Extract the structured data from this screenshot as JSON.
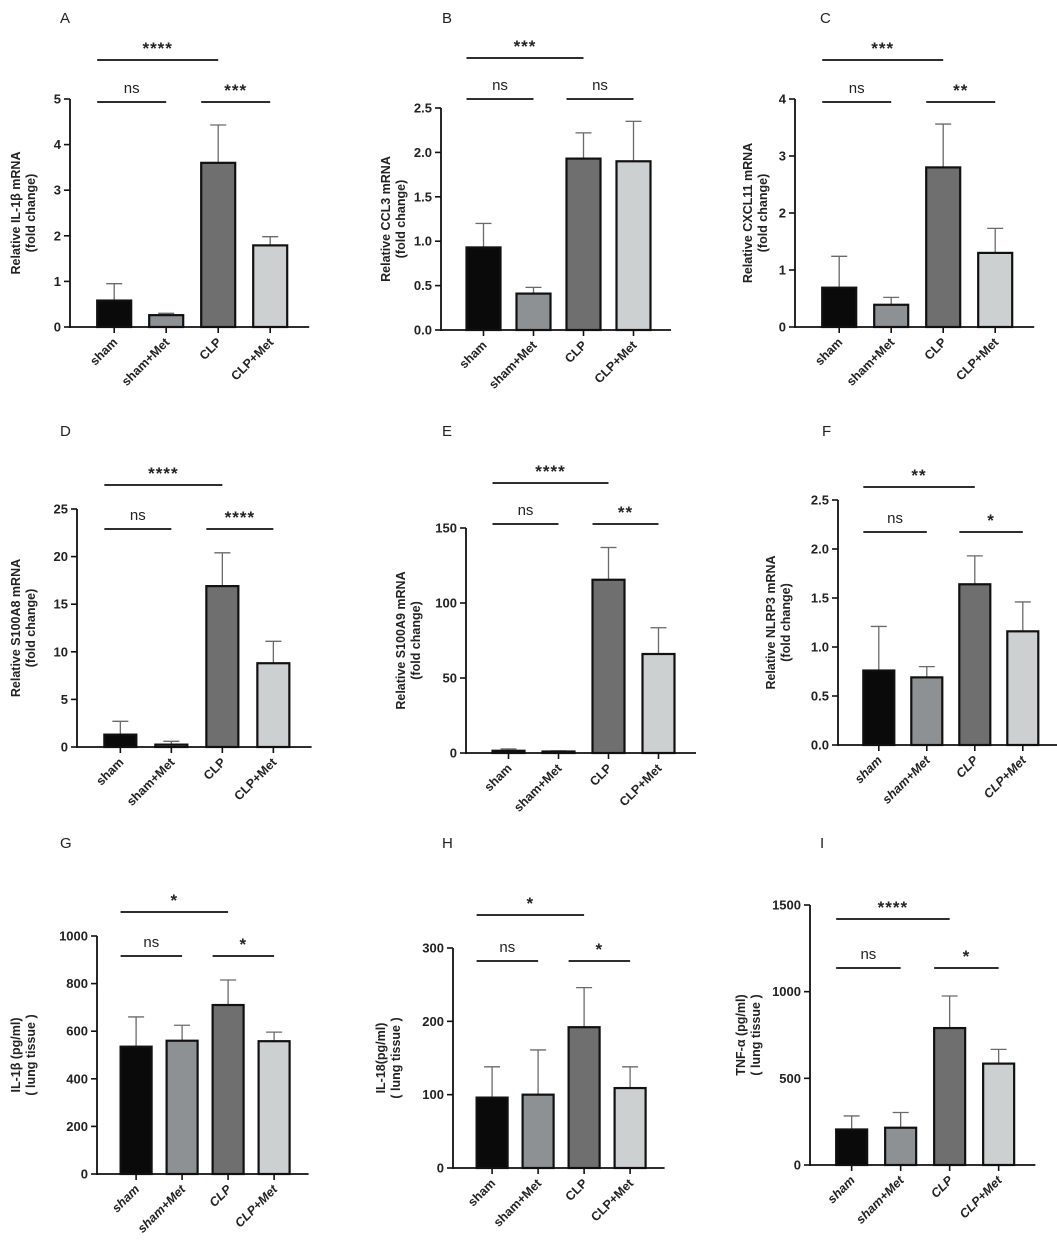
{
  "chart_data": [
    {
      "panel": "A",
      "type": "bar",
      "categories": [
        "sham",
        "sham+Met",
        "CLP",
        "CLP+Met"
      ],
      "values": [
        0.58,
        0.26,
        3.6,
        1.79
      ],
      "errors": [
        0.37,
        0.04,
        0.83,
        0.19
      ],
      "ylabel": [
        "Relative IL-1β mRNA",
        "(fold change)"
      ],
      "ylim": [
        0,
        5
      ],
      "yticks": [
        0,
        1,
        2,
        3,
        4,
        5
      ],
      "tick_labels": [
        "0",
        "1",
        "2",
        "3",
        "4",
        "5"
      ],
      "significance": [
        {
          "from": 0,
          "to": 2,
          "label": "****"
        },
        {
          "from": 0,
          "to": 1,
          "label": "ns"
        },
        {
          "from": 2,
          "to": 3,
          "label": "***"
        }
      ],
      "italic_categories": false
    },
    {
      "panel": "B",
      "type": "bar",
      "categories": [
        "sham",
        "sham+Met",
        "CLP",
        "CLP+Met"
      ],
      "values": [
        0.93,
        0.41,
        1.93,
        1.9
      ],
      "errors": [
        0.27,
        0.07,
        0.29,
        0.45
      ],
      "ylabel": [
        "Relative CCL3 mRNA",
        "(fold change)"
      ],
      "ylim": [
        0,
        2.5
      ],
      "yticks": [
        0,
        0.5,
        1,
        1.5,
        2,
        2.5
      ],
      "tick_labels": [
        "0.0",
        "0.5",
        "1.0",
        "1.5",
        "2.0",
        "2.5"
      ],
      "significance": [
        {
          "from": 0,
          "to": 2,
          "label": "***"
        },
        {
          "from": 0,
          "to": 1,
          "label": "ns"
        },
        {
          "from": 2,
          "to": 3,
          "label": "ns"
        }
      ],
      "italic_categories": false
    },
    {
      "panel": "C",
      "type": "bar",
      "categories": [
        "sham",
        "sham+Met",
        "CLP",
        "CLP+Met"
      ],
      "values": [
        0.69,
        0.39,
        2.8,
        1.3
      ],
      "errors": [
        0.55,
        0.13,
        0.76,
        0.43
      ],
      "ylabel": [
        "Relative CXCL11 mRNA",
        "(fold change)"
      ],
      "ylim": [
        0,
        4
      ],
      "yticks": [
        0,
        1,
        2,
        3,
        4
      ],
      "tick_labels": [
        "0",
        "1",
        "2",
        "3",
        "4"
      ],
      "significance": [
        {
          "from": 0,
          "to": 2,
          "label": "***"
        },
        {
          "from": 0,
          "to": 1,
          "label": "ns"
        },
        {
          "from": 2,
          "to": 3,
          "label": "**"
        }
      ],
      "italic_categories": false
    },
    {
      "panel": "D",
      "type": "bar",
      "categories": [
        "sham",
        "sham+Met",
        "CLP",
        "CLP+Met"
      ],
      "values": [
        1.3,
        0.25,
        16.9,
        8.8
      ],
      "errors": [
        1.4,
        0.35,
        3.5,
        2.3
      ],
      "ylabel": [
        "Relative S100A8 mRNA",
        "(fold change)"
      ],
      "ylim": [
        0,
        25
      ],
      "yticks": [
        0,
        5,
        10,
        15,
        20,
        25
      ],
      "tick_labels": [
        "0",
        "5",
        "10",
        "15",
        "20",
        "25"
      ],
      "significance": [
        {
          "from": 0,
          "to": 2,
          "label": "****"
        },
        {
          "from": 0,
          "to": 1,
          "label": "ns"
        },
        {
          "from": 2,
          "to": 3,
          "label": "****"
        }
      ],
      "italic_categories": false
    },
    {
      "panel": "E",
      "type": "bar",
      "categories": [
        "sham",
        "sham+Met",
        "CLP",
        "CLP+Met"
      ],
      "values": [
        1.5,
        0.8,
        115.5,
        66
      ],
      "errors": [
        1.2,
        0.6,
        21.5,
        17.5
      ],
      "ylabel": [
        "Relative S100A9 mRNA",
        "(fold change)"
      ],
      "ylim": [
        0,
        150
      ],
      "yticks": [
        0,
        50,
        100,
        150
      ],
      "tick_labels": [
        "0",
        "50",
        "100",
        "150"
      ],
      "significance": [
        {
          "from": 0,
          "to": 2,
          "label": "****"
        },
        {
          "from": 0,
          "to": 1,
          "label": "ns"
        },
        {
          "from": 2,
          "to": 3,
          "label": "**"
        }
      ],
      "italic_categories": false
    },
    {
      "panel": "F",
      "type": "bar",
      "categories": [
        "sham",
        "sham+Met",
        "CLP",
        "CLP+Met"
      ],
      "values": [
        0.76,
        0.69,
        1.64,
        1.16
      ],
      "errors": [
        0.45,
        0.11,
        0.29,
        0.3
      ],
      "ylabel": [
        "Relative NLRP3 mRNA",
        "(fold change)"
      ],
      "ylim": [
        0,
        2.5
      ],
      "yticks": [
        0,
        0.5,
        1,
        1.5,
        2,
        2.5
      ],
      "tick_labels": [
        "0.0",
        "0.5",
        "1.0",
        "1.5",
        "2.0",
        "2.5"
      ],
      "significance": [
        {
          "from": 0,
          "to": 2,
          "label": "**"
        },
        {
          "from": 0,
          "to": 1,
          "label": "ns"
        },
        {
          "from": 2,
          "to": 3,
          "label": "*"
        }
      ],
      "italic_categories": true
    },
    {
      "panel": "G",
      "type": "bar",
      "categories": [
        "sham",
        "sham+Met",
        "CLP",
        "CLP+Met"
      ],
      "values": [
        535,
        560,
        710,
        558
      ],
      "errors": [
        125,
        65,
        105,
        38
      ],
      "ylabel": [
        "IL-1β (pg/ml)",
        "( lung tissue )"
      ],
      "ylim": [
        0,
        1000
      ],
      "yticks": [
        0,
        200,
        400,
        600,
        800,
        1000
      ],
      "tick_labels": [
        "0",
        "200",
        "400",
        "600",
        "800",
        "1000"
      ],
      "significance": [
        {
          "from": 0,
          "to": 2,
          "label": "*"
        },
        {
          "from": 0,
          "to": 1,
          "label": "ns"
        },
        {
          "from": 2,
          "to": 3,
          "label": "*"
        }
      ],
      "italic_categories": true
    },
    {
      "panel": "H",
      "type": "bar",
      "categories": [
        "sham",
        "sham+Met",
        "CLP",
        "CLP+Met"
      ],
      "values": [
        96,
        100,
        192,
        109
      ],
      "errors": [
        42,
        61,
        54,
        29
      ],
      "ylabel": [
        "IL-18(pg/ml)",
        "( lung tissue )"
      ],
      "ylim": [
        0,
        300
      ],
      "yticks": [
        0,
        100,
        200,
        300
      ],
      "tick_labels": [
        "0",
        "100",
        "200",
        "300"
      ],
      "significance": [
        {
          "from": 0,
          "to": 2,
          "label": "*"
        },
        {
          "from": 0,
          "to": 1,
          "label": "ns"
        },
        {
          "from": 2,
          "to": 3,
          "label": "*"
        }
      ],
      "italic_categories": false
    },
    {
      "panel": "I",
      "type": "bar",
      "categories": [
        "sham",
        "sham+Met",
        "CLP",
        "CLP+Met"
      ],
      "values": [
        205,
        215,
        790,
        585
      ],
      "errors": [
        78,
        88,
        185,
        82
      ],
      "ylabel": [
        "TNF-α (pg/ml)",
        "( lung tissue )"
      ],
      "ylim": [
        0,
        1500
      ],
      "yticks": [
        0,
        500,
        1000,
        1500
      ],
      "tick_labels": [
        "0",
        "500",
        "1000",
        "1500"
      ],
      "significance": [
        {
          "from": 0,
          "to": 2,
          "label": "****"
        },
        {
          "from": 0,
          "to": 1,
          "label": "ns"
        },
        {
          "from": 2,
          "to": 3,
          "label": "*"
        }
      ],
      "italic_categories": true
    }
  ],
  "bar_colors": [
    "#0a0a0a",
    "#8e9194",
    "#6f6f6f",
    "#cdd0d0"
  ],
  "edge_color": "#111111",
  "error_color": "#6a6a6a"
}
